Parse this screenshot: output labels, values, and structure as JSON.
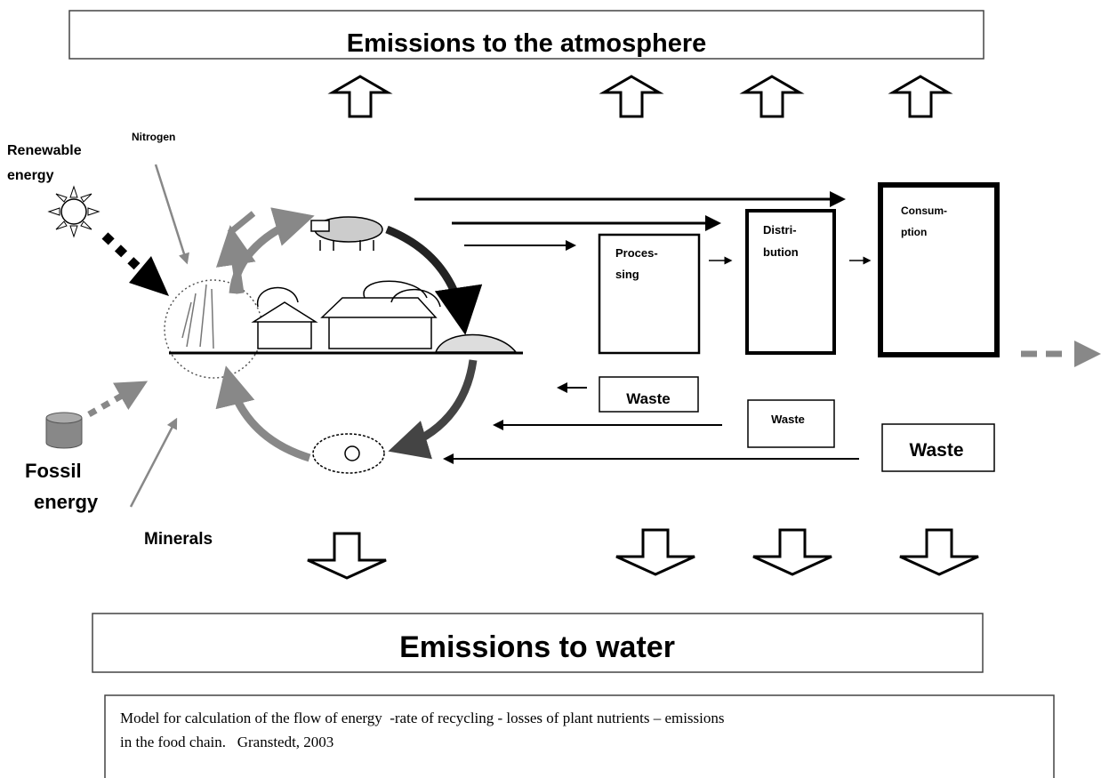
{
  "header": {
    "title": "Emissions to the atmosphere"
  },
  "inputs": {
    "renewable": [
      "Renewable",
      "energy"
    ],
    "nitrogen": "Nitrogen",
    "fossil": [
      "Fossil",
      "energy"
    ],
    "minerals": "Minerals"
  },
  "stages": [
    {
      "label": [
        "Proces-",
        "sing"
      ],
      "waste": "Waste"
    },
    {
      "label": [
        "Distri-",
        "bution"
      ],
      "waste": "Waste"
    },
    {
      "label": [
        "Consum-",
        "ption"
      ],
      "waste": "Waste"
    }
  ],
  "footer": {
    "title": "Emissions to water"
  },
  "caption": [
    "Model for calculation of the flow of energy  -rate of recycling - losses of plant nutrients – emissions",
    "in the food chain.   Granstedt, 2003"
  ]
}
